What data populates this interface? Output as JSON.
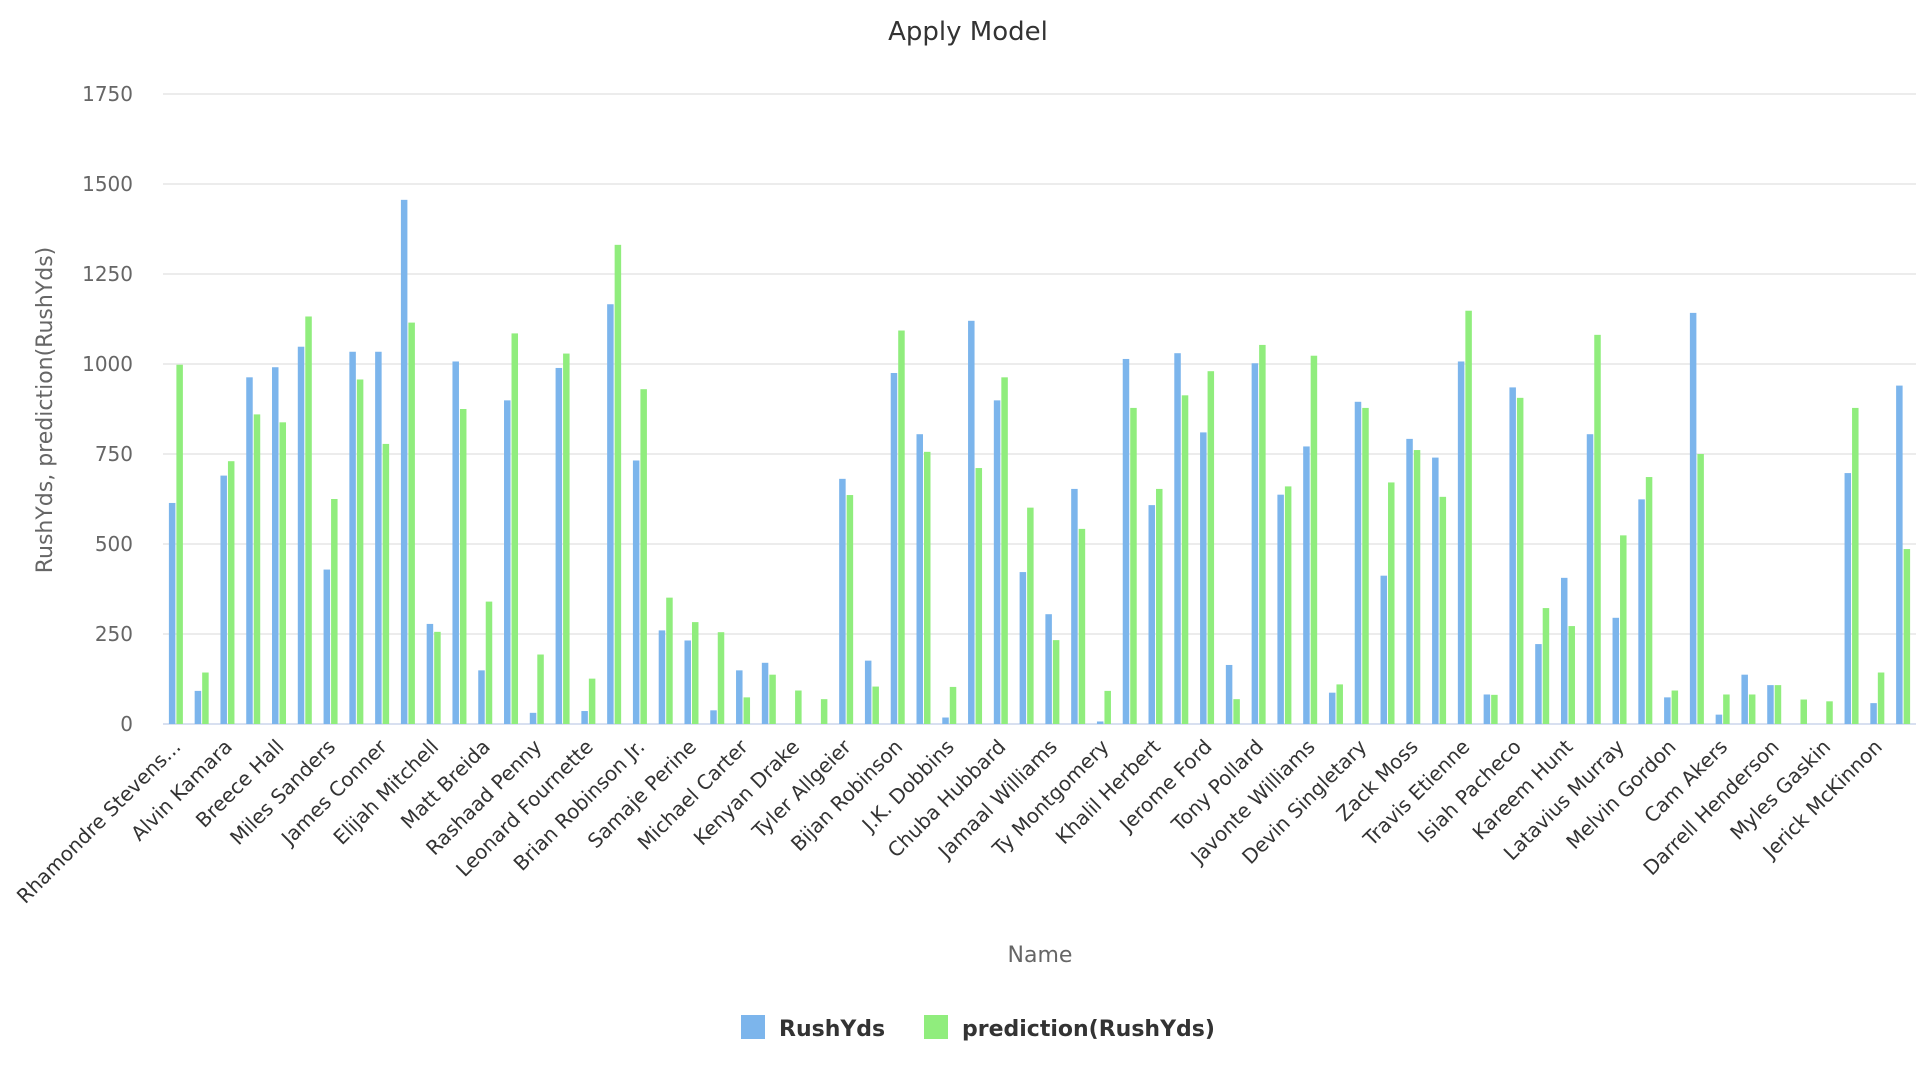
{
  "chart_data": {
    "type": "bar",
    "title": "Apply Model",
    "xlabel": "Name",
    "ylabel": "RushYds, prediction(RushYds)",
    "ylim": [
      0,
      1750
    ],
    "yticks": [
      0,
      250,
      500,
      750,
      1000,
      1250,
      1500,
      1750
    ],
    "grid": true,
    "legend_position": "bottom",
    "categories": [
      "Rhamondre Stevens...",
      "",
      "Alvin Kamara",
      "",
      "Breece Hall",
      "",
      "Miles Sanders",
      "",
      "James Conner",
      "",
      "Elijah Mitchell",
      "",
      "Matt Breida",
      "",
      "Rashaad Penny",
      "",
      "Leonard Fournette",
      "",
      "Brian Robinson Jr.",
      "",
      "Samaje Perine",
      "",
      "Michael Carter",
      "",
      "Kenyan Drake",
      "",
      "Tyler Allgeier",
      "",
      "Bijan Robinson",
      "",
      "J.K. Dobbins",
      "",
      "Chuba Hubbard",
      "",
      "Jamaal Williams",
      "",
      "Ty Montgomery",
      "",
      "Khalil Herbert",
      "",
      "Jerome Ford",
      "",
      "Tony Pollard",
      "",
      "Javonte Williams",
      "",
      "Devin Singletary",
      "",
      "Zack Moss",
      "",
      "Travis Etienne",
      "",
      "Isiah Pacheco",
      "",
      "Kareem Hunt",
      "",
      "Latavius Murray",
      "",
      "Melvin Gordon",
      "",
      "Cam Akers",
      "",
      "Darrell Henderson",
      "",
      "Myles Gaskin",
      "",
      "Jerick McKinnon",
      ""
    ],
    "series": [
      {
        "name": "RushYds",
        "color": "#7cb5ec",
        "values": [
          614,
          92,
          690,
          963,
          991,
          1048,
          429,
          1034,
          1034,
          1456,
          278,
          1007,
          149,
          899,
          31,
          989,
          36,
          1166,
          732,
          260,
          232,
          38,
          149,
          170,
          0,
          0,
          681,
          176,
          975,
          805,
          18,
          1120,
          899,
          422,
          305,
          653,
          7,
          1014,
          608,
          1030,
          810,
          164,
          1002,
          637,
          771,
          87,
          895,
          412,
          792,
          740,
          1007,
          82,
          935,
          222,
          406,
          805,
          295,
          624,
          74,
          1142,
          26,
          137,
          108,
          0,
          0,
          697,
          58,
          940
        ]
      },
      {
        "name": "prediction(RushYds)",
        "color": "#90ed7d",
        "values": [
          998,
          143,
          730,
          860,
          838,
          1132,
          625,
          957,
          778,
          1115,
          256,
          875,
          340,
          1085,
          193,
          1029,
          126,
          1331,
          930,
          351,
          283,
          255,
          74,
          137,
          93,
          69,
          636,
          104,
          1093,
          756,
          103,
          711,
          963,
          601,
          233,
          542,
          92,
          878,
          653,
          913,
          980,
          69,
          1053,
          660,
          1023,
          110,
          878,
          671,
          761,
          631,
          1148,
          81,
          906,
          322,
          272,
          1081,
          524,
          686,
          93,
          750,
          82,
          82,
          108,
          68,
          63,
          878,
          143,
          486
        ]
      }
    ]
  }
}
